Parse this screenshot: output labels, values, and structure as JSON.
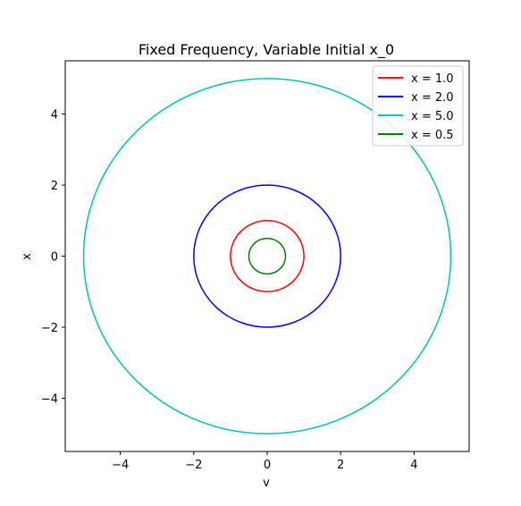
{
  "chart_data": {
    "type": "line",
    "title": "Fixed Frequency, Variable Initial x_0",
    "xlabel": "v",
    "ylabel": "x",
    "xlim": [
      -5.5,
      5.5
    ],
    "ylim": [
      -5.5,
      5.5
    ],
    "xticks": [
      -4,
      -2,
      0,
      2,
      4
    ],
    "yticks": [
      -4,
      -2,
      0,
      2,
      4
    ],
    "grid": false,
    "legend_position": "top-right",
    "series": [
      {
        "name": "x = 1.0",
        "color": "#ff0000",
        "amplitude": 1.0
      },
      {
        "name": "x = 2.0",
        "color": "#0000ff",
        "amplitude": 2.0
      },
      {
        "name": "x = 5.0",
        "color": "#00bfbf",
        "amplitude": 5.0
      },
      {
        "name": "x = 0.5",
        "color": "#008000",
        "amplitude": 0.5
      }
    ]
  }
}
